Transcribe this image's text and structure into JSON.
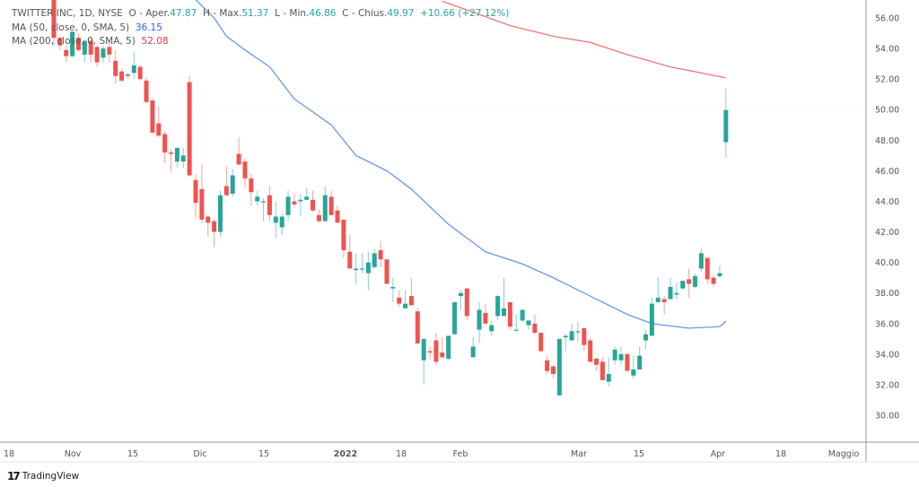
{
  "legend": {
    "symbol": "TWITTER INC, 1D, NYSE",
    "open_label": "O - Aper.",
    "open": "47.87",
    "high_label": "H - Max.",
    "high": "51.37",
    "low_label": "L - Min.",
    "low": "46.86",
    "close_label": "C - Chius.",
    "close": "49.97",
    "change": "+10.66 (+27.12%)",
    "ma50_label": "MA (50, close, 0, SMA, 5)",
    "ma50_value": "36.15",
    "ma200_label": "MA (200, close, 0, SMA, 5)",
    "ma200_value": "52.08"
  },
  "branding": {
    "logo": "TradingView"
  },
  "colors": {
    "up": "#26a69a",
    "down": "#ef5350",
    "ma50": "#5b8def",
    "ma200": "#f06a6a"
  },
  "chart_data": {
    "type": "candlestick",
    "title": "TWITTER INC, 1D, NYSE",
    "ylim": [
      28,
      57
    ],
    "grid": false,
    "y_ticks": [
      "56.00",
      "54.00",
      "52.00",
      "50.00",
      "48.00",
      "46.00",
      "44.00",
      "42.00",
      "40.00",
      "38.00",
      "36.00",
      "34.00",
      "32.00",
      "30.00"
    ],
    "x_ticks": [
      "18",
      "Nov",
      "15",
      "Dic",
      "15",
      "2022",
      "18",
      "Feb",
      "Mar",
      "15",
      "Apr",
      "18",
      "Maggio"
    ],
    "candles_fields": [
      "date",
      "open",
      "high",
      "low",
      "close"
    ],
    "candles": [
      [
        "2021-10-27",
        57.7,
        58.3,
        54.2,
        54.7
      ],
      [
        "2021-10-28",
        54.7,
        54.8,
        53.9,
        54.2
      ],
      [
        "2021-10-29",
        53.9,
        54.2,
        53.1,
        53.5
      ],
      [
        "2021-11-01",
        53.5,
        55.1,
        53.4,
        55.1
      ],
      [
        "2021-11-02",
        54.7,
        55.0,
        53.8,
        53.9
      ],
      [
        "2021-11-03",
        53.6,
        54.6,
        53.1,
        54.5
      ],
      [
        "2021-11-04",
        54.5,
        54.6,
        53.1,
        53.6
      ],
      [
        "2021-11-05",
        54.1,
        54.2,
        52.8,
        53.1
      ],
      [
        "2021-11-08",
        53.4,
        54.2,
        53.1,
        54.0
      ],
      [
        "2021-11-09",
        54.1,
        54.6,
        53.1,
        53.6
      ],
      [
        "2021-11-10",
        53.2,
        53.9,
        51.7,
        52.2
      ],
      [
        "2021-11-11",
        52.5,
        52.7,
        51.8,
        51.9
      ],
      [
        "2021-11-12",
        52.3,
        52.4,
        52.0,
        52.2
      ],
      [
        "2021-11-15",
        52.4,
        53.8,
        52.0,
        52.9
      ],
      [
        "2021-11-16",
        52.8,
        52.9,
        51.9,
        52.0
      ],
      [
        "2021-11-17",
        51.9,
        52.1,
        50.4,
        50.5
      ],
      [
        "2021-11-18",
        50.6,
        50.8,
        48.4,
        48.5
      ],
      [
        "2021-11-19",
        49.1,
        50.2,
        48.2,
        48.3
      ],
      [
        "2021-11-22",
        48.4,
        48.6,
        46.5,
        47.2
      ],
      [
        "2021-11-23",
        47.2,
        47.4,
        45.9,
        47.1
      ],
      [
        "2021-11-24",
        46.6,
        47.5,
        46.2,
        47.5
      ],
      [
        "2021-11-26",
        46.6,
        47.5,
        46.2,
        47.0
      ],
      [
        "2021-11-29",
        51.8,
        52.2,
        45.6,
        45.7
      ],
      [
        "2021-11-30",
        45.4,
        45.8,
        42.9,
        43.9
      ],
      [
        "2021-12-01",
        44.8,
        46.4,
        42.6,
        42.8
      ],
      [
        "2021-12-02",
        43.0,
        43.1,
        41.7,
        42.6
      ],
      [
        "2021-12-03",
        42.7,
        42.8,
        41.0,
        42.0
      ],
      [
        "2021-12-06",
        42.0,
        44.7,
        41.7,
        44.4
      ],
      [
        "2021-12-07",
        45.0,
        46.3,
        44.3,
        44.4
      ],
      [
        "2021-12-08",
        44.5,
        46.1,
        44.3,
        45.7
      ],
      [
        "2021-12-09",
        47.1,
        48.2,
        46.4,
        46.4
      ],
      [
        "2021-12-10",
        46.6,
        46.8,
        44.9,
        45.5
      ],
      [
        "2021-12-13",
        45.5,
        45.8,
        43.7,
        44.6
      ],
      [
        "2021-12-14",
        44.0,
        44.7,
        43.7,
        44.3
      ],
      [
        "2021-12-15",
        44.0,
        44.2,
        42.7,
        44.0
      ],
      [
        "2021-12-16",
        44.4,
        45.0,
        42.7,
        43.1
      ],
      [
        "2021-12-17",
        42.6,
        44.0,
        41.6,
        43.0
      ],
      [
        "2021-12-20",
        42.3,
        43.2,
        41.8,
        43.0
      ],
      [
        "2021-12-21",
        43.1,
        44.7,
        42.7,
        44.3
      ],
      [
        "2021-12-22",
        44.0,
        44.5,
        43.6,
        43.8
      ],
      [
        "2021-12-23",
        44.0,
        44.5,
        43.0,
        44.1
      ],
      [
        "2021-12-27",
        44.1,
        44.9,
        44.1,
        44.3
      ],
      [
        "2021-12-28",
        44.1,
        44.7,
        43.3,
        43.4
      ],
      [
        "2021-12-29",
        43.1,
        43.5,
        42.6,
        42.7
      ],
      [
        "2021-12-30",
        42.7,
        45.0,
        42.7,
        44.4
      ],
      [
        "2021-12-31",
        44.3,
        44.7,
        43.1,
        43.1
      ],
      [
        "2022-01-03",
        43.4,
        43.7,
        42.6,
        42.6
      ],
      [
        "2022-01-04",
        42.8,
        42.8,
        40.3,
        40.8
      ],
      [
        "2022-01-05",
        40.7,
        41.8,
        39.6,
        39.6
      ],
      [
        "2022-01-06",
        39.5,
        40.6,
        38.6,
        39.6
      ],
      [
        "2022-01-07",
        39.6,
        40.6,
        39.3,
        39.6
      ],
      [
        "2022-01-10",
        39.3,
        40.7,
        38.2,
        40.0
      ],
      [
        "2022-01-11",
        39.7,
        40.9,
        39.6,
        40.6
      ],
      [
        "2022-01-12",
        40.8,
        41.4,
        39.7,
        40.2
      ],
      [
        "2022-01-13",
        40.2,
        40.2,
        38.6,
        38.6
      ],
      [
        "2022-01-14",
        38.3,
        39.0,
        37.4,
        38.4
      ],
      [
        "2022-01-18",
        37.7,
        38.2,
        37.1,
        37.3
      ],
      [
        "2022-01-19",
        37.0,
        38.2,
        37.0,
        37.3
      ],
      [
        "2022-01-20",
        37.8,
        39.0,
        37.2,
        37.2
      ],
      [
        "2022-01-21",
        36.8,
        37.0,
        34.7,
        34.7
      ],
      [
        "2022-01-24",
        33.6,
        35.0,
        32.0,
        35.0
      ],
      [
        "2022-01-25",
        34.2,
        34.5,
        33.6,
        34.1
      ],
      [
        "2022-01-26",
        34.9,
        35.4,
        33.3,
        33.5
      ],
      [
        "2022-01-27",
        34.1,
        35.1,
        33.7,
        33.8
      ],
      [
        "2022-01-28",
        33.7,
        35.2,
        33.6,
        35.2
      ],
      [
        "2022-01-31",
        35.3,
        37.4,
        35.3,
        37.4
      ],
      [
        "2022-02-01",
        37.8,
        38.2,
        36.9,
        38.0
      ],
      [
        "2022-02-02",
        38.3,
        38.3,
        36.2,
        36.5
      ],
      [
        "2022-02-03",
        33.8,
        35.1,
        33.8,
        34.5
      ],
      [
        "2022-02-04",
        35.6,
        37.4,
        34.7,
        36.9
      ],
      [
        "2022-02-07",
        36.7,
        37.3,
        36.0,
        36.0
      ],
      [
        "2022-02-08",
        35.5,
        36.2,
        35.2,
        35.9
      ],
      [
        "2022-02-09",
        36.5,
        37.9,
        36.2,
        37.8
      ],
      [
        "2022-02-10",
        36.5,
        39.0,
        36.5,
        37.0
      ],
      [
        "2022-02-11",
        37.4,
        37.4,
        35.6,
        35.8
      ],
      [
        "2022-02-14",
        35.6,
        36.6,
        35.6,
        35.6
      ],
      [
        "2022-02-15",
        36.2,
        36.9,
        36.1,
        36.9
      ],
      [
        "2022-02-16",
        35.9,
        36.2,
        35.6,
        36.2
      ],
      [
        "2022-02-17",
        36.0,
        36.6,
        35.3,
        35.4
      ],
      [
        "2022-02-18",
        35.4,
        35.4,
        34.1,
        34.2
      ],
      [
        "2022-02-22",
        33.6,
        33.9,
        32.7,
        32.9
      ],
      [
        "2022-02-23",
        33.2,
        33.3,
        32.4,
        32.7
      ],
      [
        "2022-02-24",
        31.3,
        35.0,
        31.3,
        35.0
      ],
      [
        "2022-02-25",
        35.1,
        35.3,
        34.2,
        35.2
      ],
      [
        "2022-02-28",
        34.9,
        36.0,
        34.9,
        35.5
      ],
      [
        "2022-03-01",
        35.5,
        36.1,
        34.8,
        35.5
      ],
      [
        "2022-03-02",
        35.7,
        35.7,
        34.2,
        34.6
      ],
      [
        "2022-03-03",
        34.9,
        35.1,
        33.5,
        33.5
      ],
      [
        "2022-03-04",
        33.7,
        33.8,
        32.9,
        33.3
      ],
      [
        "2022-03-07",
        33.5,
        33.8,
        32.3,
        32.3
      ],
      [
        "2022-03-08",
        32.2,
        33.8,
        31.9,
        32.7
      ],
      [
        "2022-03-09",
        33.6,
        34.5,
        33.3,
        34.3
      ],
      [
        "2022-03-10",
        33.6,
        34.5,
        33.3,
        34.0
      ],
      [
        "2022-03-11",
        34.0,
        34.0,
        32.9,
        32.9
      ],
      [
        "2022-03-14",
        32.6,
        33.9,
        32.4,
        33.0
      ],
      [
        "2022-03-15",
        33.0,
        34.5,
        33.0,
        33.9
      ],
      [
        "2022-03-16",
        34.9,
        35.6,
        34.3,
        35.3
      ],
      [
        "2022-03-17",
        35.2,
        37.7,
        35.2,
        37.3
      ],
      [
        "2022-03-18",
        37.4,
        39.0,
        37.4,
        37.7
      ],
      [
        "2022-03-21",
        37.6,
        37.8,
        36.6,
        37.4
      ],
      [
        "2022-03-22",
        37.6,
        39.0,
        37.6,
        38.4
      ],
      [
        "2022-03-23",
        37.9,
        38.7,
        37.6,
        38.0
      ],
      [
        "2022-03-24",
        38.3,
        38.8,
        38.2,
        38.8
      ],
      [
        "2022-03-25",
        38.9,
        39.6,
        37.7,
        38.6
      ],
      [
        "2022-03-28",
        38.4,
        39.3,
        38.3,
        39.1
      ],
      [
        "2022-03-29",
        39.6,
        40.9,
        39.4,
        40.6
      ],
      [
        "2022-03-30",
        40.3,
        40.3,
        38.6,
        38.9
      ],
      [
        "2022-03-31",
        39.0,
        39.2,
        38.4,
        38.6
      ],
      [
        "2022-04-01",
        39.1,
        39.8,
        39.0,
        39.3
      ],
      [
        "2022-04-04",
        47.87,
        51.37,
        46.86,
        49.97
      ]
    ],
    "series": [
      {
        "name": "MA (50, close, 0, SMA, 5)",
        "type": "line",
        "points": [
          [
            "2021-11-30",
            57.2
          ],
          [
            "2021-12-03",
            56.0
          ],
          [
            "2021-12-07",
            54.8
          ],
          [
            "2021-12-10",
            53.9
          ],
          [
            "2021-12-16",
            52.8
          ],
          [
            "2021-12-22",
            50.7
          ],
          [
            "2021-12-31",
            49.0
          ],
          [
            "2022-01-06",
            47.0
          ],
          [
            "2022-01-13",
            46.0
          ],
          [
            "2022-01-20",
            44.8
          ],
          [
            "2022-01-28",
            42.5
          ],
          [
            "2022-02-07",
            40.7
          ],
          [
            "2022-02-15",
            39.9
          ],
          [
            "2022-02-23",
            39.0
          ],
          [
            "2022-03-03",
            37.8
          ],
          [
            "2022-03-11",
            36.6
          ],
          [
            "2022-03-17",
            36.0
          ],
          [
            "2022-03-25",
            35.7
          ],
          [
            "2022-04-01",
            35.8
          ],
          [
            "2022-04-04",
            36.15
          ]
        ]
      },
      {
        "name": "MA (200, close, 0, SMA, 5)",
        "type": "line",
        "points": [
          [
            "2022-01-27",
            57.1
          ],
          [
            "2022-02-11",
            55.5
          ],
          [
            "2022-02-23",
            54.8
          ],
          [
            "2022-03-03",
            54.4
          ],
          [
            "2022-03-11",
            53.6
          ],
          [
            "2022-03-22",
            52.8
          ],
          [
            "2022-04-04",
            52.08
          ]
        ]
      }
    ],
    "reference_line": 50.0
  }
}
